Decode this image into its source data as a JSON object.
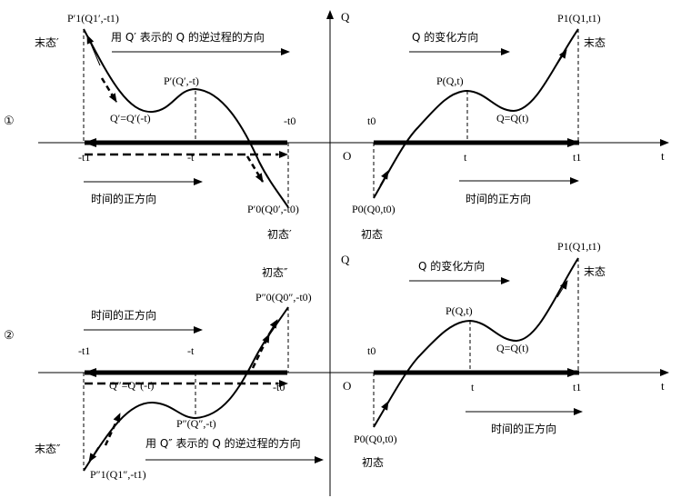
{
  "axes": {
    "q": "Q",
    "t_right_top": "t",
    "t_right_bottom": "t",
    "origin_top": "O",
    "origin_bottom": "O"
  },
  "row1": {
    "marker": "①",
    "left": {
      "p1": "P′1(Q1′,-t1)",
      "final_state": "末态′",
      "reverse_dir": "用 Q′ 表示的 Q 的逆过程的方向",
      "p_mid": "P′(Q′,-t)",
      "q_eq": "Q′=Q′(-t)",
      "neg_t0": "-t0",
      "neg_t1": "-t1",
      "neg_t": "-t",
      "time_dir": "时间的正方向",
      "p0": "P′0(Q0′,-t0)",
      "initial_state": "初态′"
    },
    "right": {
      "q_change": "Q 的变化方向",
      "p1": "P1(Q1,t1)",
      "final_state": "末态",
      "p_mid": "P(Q,t)",
      "q_eq": "Q=Q(t)",
      "t0": "t0",
      "t_tick": "t",
      "t1": "t1",
      "time_dir": "时间的正方向",
      "p0": "P0(Q0,t0)",
      "initial_state": "初态"
    }
  },
  "row2": {
    "marker": "②",
    "left": {
      "initial_state": "初态″",
      "p0": "P″0(Q0″,-t0)",
      "time_dir": "时间的正方向",
      "neg_t1": "-t1",
      "neg_t": "-t",
      "q_eq": "Q″=Q″(-t)",
      "neg_t0": "-t0",
      "p_mid": "P″(Q″,-t)",
      "reverse_dir": "用 Q″ 表示的 Q 的逆过程的方向",
      "final_state": "末态″",
      "p1": "P″1(Q1″,-t1)"
    },
    "right": {
      "p1": "P1(Q1,t1)",
      "final_state": "末态",
      "q_change": "Q 的变化方向",
      "p_mid": "P(Q,t)",
      "q_eq": "Q=Q(t)",
      "t0": "t0",
      "t_tick": "t",
      "t1": "t1",
      "time_dir": "时间的正方向",
      "p0": "P0(Q0,t0)",
      "initial_state": "初态"
    }
  }
}
